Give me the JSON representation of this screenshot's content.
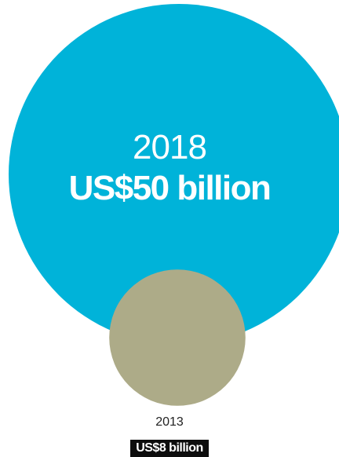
{
  "chart_data": {
    "type": "bubble",
    "series": [
      {
        "year": "2018",
        "label": "US$50 billion",
        "value": 50,
        "color": "#00b3d9"
      },
      {
        "year": "2013",
        "label": "US$8 billion",
        "value": 8,
        "color": "#adab88"
      }
    ],
    "unit": "US$ billion"
  }
}
